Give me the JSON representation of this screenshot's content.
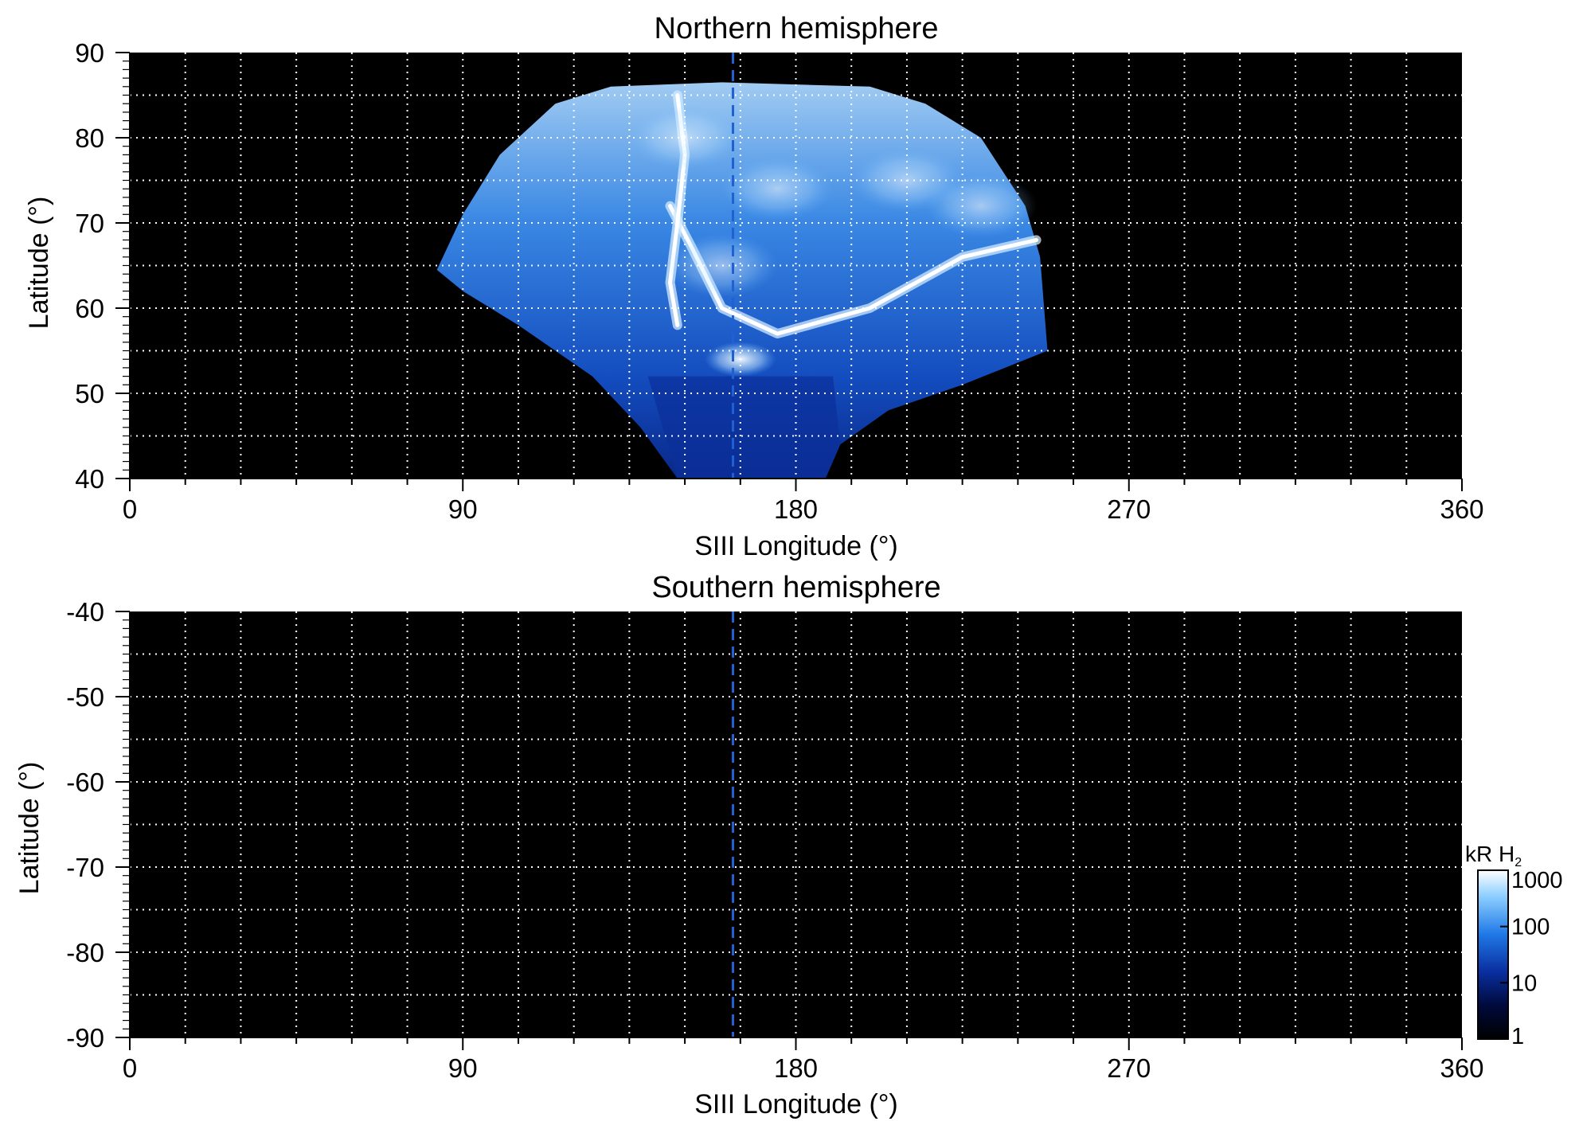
{
  "chart_data": [
    {
      "type": "heatmap",
      "title": "Northern hemisphere",
      "xlabel": "SIII Longitude (°)",
      "ylabel": "Latitude (°)",
      "xlim": [
        0,
        360
      ],
      "ylim": [
        40,
        90
      ],
      "x_ticks": [
        "0",
        "90",
        "180",
        "270",
        "360"
      ],
      "y_ticks": [
        "40",
        "50",
        "60",
        "70",
        "80",
        "90"
      ],
      "grid": true,
      "grid_dx": 15,
      "grid_dy": 5,
      "background": "#000000",
      "reference_longitude": 163,
      "reference_line_color": "#2060d0",
      "emission_region": {
        "longitude_range": [
          83,
          248
        ],
        "latitude_range": [
          40,
          86
        ],
        "bright_features": [
          {
            "description": "main oval arc",
            "points": [
              [
                146,
                72
              ],
              [
                152,
                67
              ],
              [
                160,
                60
              ],
              [
                175,
                57
              ],
              [
                200,
                60
              ],
              [
                225,
                66
              ],
              [
                245,
                68
              ]
            ]
          },
          {
            "description": "dawn arc",
            "points": [
              [
                148,
                85
              ],
              [
                150,
                78
              ],
              [
                148,
                70
              ],
              [
                146,
                63
              ],
              [
                148,
                58
              ]
            ]
          },
          {
            "description": "spot",
            "points": [
              [
                165,
                54
              ]
            ]
          }
        ]
      }
    },
    {
      "type": "heatmap",
      "title": "Southern hemisphere",
      "xlabel": "SIII Longitude (°)",
      "ylabel": "Latitude (°)",
      "xlim": [
        0,
        360
      ],
      "ylim": [
        -90,
        -40
      ],
      "x_ticks": [
        "0",
        "90",
        "180",
        "270",
        "360"
      ],
      "y_ticks": [
        "-40",
        "-50",
        "-60",
        "-70",
        "-80",
        "-90"
      ],
      "grid": true,
      "grid_dx": 15,
      "grid_dy": 5,
      "background": "#000000",
      "reference_longitude": 163,
      "reference_line_color": "#2060d0"
    }
  ],
  "colorbar": {
    "label": "kR H",
    "label_subscript": "2",
    "scale": "log",
    "range": [
      1,
      1000
    ],
    "ticks": [
      "1",
      "10",
      "100",
      "1000"
    ],
    "colors": [
      "#000000",
      "#000a3c",
      "#0a2fa0",
      "#1f78e6",
      "#8fd0ff",
      "#ffffff"
    ]
  }
}
